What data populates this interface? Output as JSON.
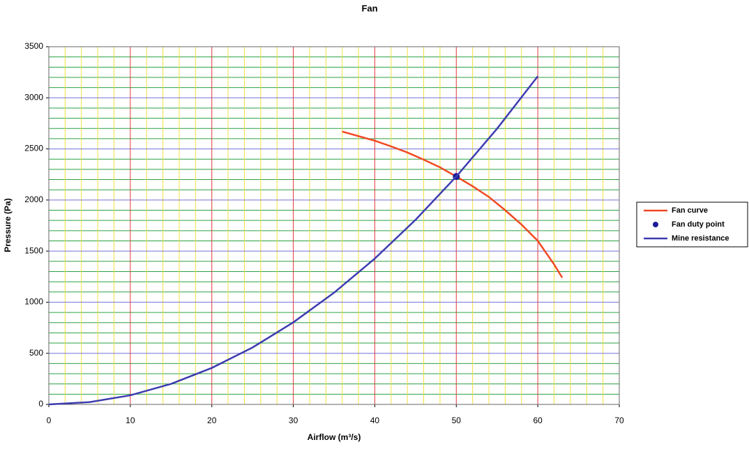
{
  "chart_data": {
    "type": "line",
    "title": "Fan",
    "x_label": "Airflow (m³/s)",
    "y_label": "Pressure (Pa)",
    "xlim": [
      0,
      70
    ],
    "ylim": [
      0,
      3500
    ],
    "xticks": [
      0,
      10,
      20,
      30,
      40,
      50,
      60,
      70
    ],
    "yticks": [
      0,
      500,
      1000,
      1500,
      2000,
      2500,
      3000,
      3500
    ],
    "xminorticks": [
      2,
      4,
      6,
      8,
      12,
      14,
      16,
      18,
      22,
      24,
      26,
      28,
      32,
      34,
      36,
      38,
      42,
      44,
      46,
      48,
      52,
      54,
      56,
      58,
      62,
      64,
      66,
      68
    ],
    "yminorticks": [
      100,
      200,
      300,
      400,
      600,
      700,
      800,
      900,
      1100,
      1200,
      1300,
      1400,
      1600,
      1700,
      1800,
      1900,
      2100,
      2200,
      2300,
      2400,
      2600,
      2700,
      2800,
      2900,
      3100,
      3200,
      3300,
      3400
    ],
    "grid": true,
    "grid_colors": {
      "x_major": "#e03a3a",
      "x_minor": "#f0e040",
      "y_major": "#7070d8",
      "y_minor": "#2aa040"
    },
    "legend": "right",
    "series": [
      {
        "name": "Fan curve",
        "color": "#f04a24",
        "mode": "line",
        "x": [
          36,
          38,
          40,
          42,
          44,
          46,
          48,
          50,
          52,
          54,
          56,
          58,
          60,
          62,
          63
        ],
        "values": [
          2670,
          2625,
          2580,
          2525,
          2465,
          2395,
          2320,
          2230,
          2135,
          2030,
          1900,
          1760,
          1600,
          1370,
          1240
        ]
      },
      {
        "name": "Fan duty point",
        "color": "#1c1c96",
        "mode": "marker",
        "x": [
          50
        ],
        "values": [
          2230
        ]
      },
      {
        "name": "Mine resistance",
        "color": "#3c3cb0",
        "mode": "line",
        "x": [
          0,
          5,
          10,
          15,
          20,
          25,
          30,
          35,
          40,
          45,
          50,
          55,
          60
        ],
        "values": [
          0,
          22,
          89,
          201,
          357,
          557,
          803,
          1093,
          1427,
          1806,
          2230,
          2698,
          3211
        ]
      }
    ]
  }
}
